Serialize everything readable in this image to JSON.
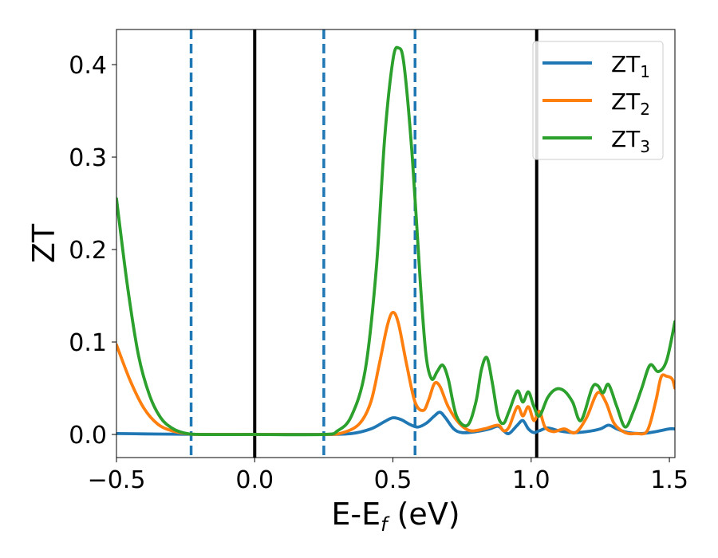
{
  "chart_data": {
    "type": "line",
    "xlabel": "E-E",
    "xlabel_sub": "f",
    "xlabel_unit": " (eV)",
    "ylabel": "ZT",
    "xlim": [
      -0.5,
      1.52
    ],
    "ylim": [
      -0.025,
      0.438
    ],
    "xticks": [
      -0.5,
      0.0,
      0.5,
      1.0,
      1.5
    ],
    "xtick_labels": [
      "−0.5",
      "0.0",
      "0.5",
      "1.0",
      "1.5"
    ],
    "yticks": [
      0.0,
      0.1,
      0.2,
      0.3,
      0.4
    ],
    "ytick_labels": [
      "0.0",
      "0.1",
      "0.2",
      "0.3",
      "0.4"
    ],
    "grid": false,
    "legend_position": "top-right",
    "vlines_solid": [
      0.0,
      1.02
    ],
    "vlines_dashed": [
      -0.23,
      0.25,
      0.58
    ],
    "vline_solid_color": "#000000",
    "vline_dashed_color": "#1f77b4",
    "series": [
      {
        "name": "ZT",
        "name_sub": "1",
        "color": "#1f77b4",
        "x": [
          -0.5,
          -0.4,
          -0.3,
          -0.2,
          0.0,
          0.25,
          0.35,
          0.42,
          0.47,
          0.5,
          0.53,
          0.56,
          0.59,
          0.62,
          0.65,
          0.67,
          0.69,
          0.72,
          0.75,
          0.8,
          0.85,
          0.88,
          0.9,
          0.92,
          0.95,
          0.97,
          0.99,
          1.01,
          1.03,
          1.06,
          1.1,
          1.15,
          1.2,
          1.25,
          1.28,
          1.31,
          1.35,
          1.4,
          1.45,
          1.5,
          1.52
        ],
        "y": [
          0.001,
          0.0006,
          0.0003,
          0.0001,
          0.0,
          0.0,
          0.001,
          0.006,
          0.014,
          0.018,
          0.016,
          0.011,
          0.008,
          0.012,
          0.02,
          0.024,
          0.018,
          0.006,
          0.002,
          0.003,
          0.006,
          0.009,
          0.004,
          0.001,
          0.01,
          0.015,
          0.006,
          0.002,
          0.004,
          0.007,
          0.004,
          0.002,
          0.003,
          0.006,
          0.01,
          0.006,
          0.002,
          0.001,
          0.003,
          0.006,
          0.006
        ]
      },
      {
        "name": "ZT",
        "name_sub": "2",
        "color": "#ff7f0e",
        "x": [
          -0.5,
          -0.45,
          -0.4,
          -0.35,
          -0.3,
          -0.25,
          -0.2,
          0.0,
          0.25,
          0.32,
          0.38,
          0.42,
          0.45,
          0.48,
          0.5,
          0.52,
          0.55,
          0.58,
          0.61,
          0.63,
          0.65,
          0.67,
          0.7,
          0.74,
          0.78,
          0.83,
          0.88,
          0.9,
          0.92,
          0.95,
          0.97,
          0.99,
          1.01,
          1.03,
          1.05,
          1.08,
          1.12,
          1.16,
          1.2,
          1.24,
          1.27,
          1.3,
          1.34,
          1.38,
          1.42,
          1.45,
          1.47,
          1.49,
          1.51,
          1.52
        ],
        "y": [
          0.097,
          0.058,
          0.028,
          0.011,
          0.004,
          0.001,
          0.0,
          0.0,
          0.0,
          0.002,
          0.012,
          0.035,
          0.075,
          0.118,
          0.132,
          0.12,
          0.075,
          0.035,
          0.026,
          0.038,
          0.055,
          0.052,
          0.03,
          0.012,
          0.004,
          0.006,
          0.01,
          0.004,
          0.008,
          0.03,
          0.02,
          0.03,
          0.015,
          0.025,
          0.008,
          0.003,
          0.006,
          0.002,
          0.018,
          0.045,
          0.035,
          0.012,
          0.002,
          0.001,
          0.004,
          0.035,
          0.062,
          0.063,
          0.06,
          0.05
        ]
      },
      {
        "name": "ZT",
        "name_sub": "3",
        "color": "#2ca02c",
        "x": [
          -0.5,
          -0.46,
          -0.42,
          -0.38,
          -0.34,
          -0.3,
          -0.26,
          -0.2,
          0.0,
          0.25,
          0.3,
          0.35,
          0.4,
          0.44,
          0.47,
          0.5,
          0.52,
          0.54,
          0.57,
          0.6,
          0.62,
          0.64,
          0.66,
          0.68,
          0.7,
          0.73,
          0.77,
          0.8,
          0.82,
          0.84,
          0.86,
          0.88,
          0.9,
          0.92,
          0.95,
          0.97,
          0.99,
          1.01,
          1.03,
          1.06,
          1.09,
          1.12,
          1.15,
          1.18,
          1.22,
          1.24,
          1.26,
          1.28,
          1.31,
          1.34,
          1.37,
          1.4,
          1.43,
          1.46,
          1.49,
          1.52
        ],
        "y": [
          0.255,
          0.16,
          0.085,
          0.042,
          0.018,
          0.007,
          0.002,
          0.0,
          0.0,
          0.0,
          0.004,
          0.02,
          0.07,
          0.18,
          0.32,
          0.405,
          0.418,
          0.4,
          0.3,
          0.16,
          0.085,
          0.06,
          0.068,
          0.075,
          0.06,
          0.02,
          0.01,
          0.035,
          0.07,
          0.083,
          0.055,
          0.02,
          0.012,
          0.025,
          0.047,
          0.035,
          0.046,
          0.03,
          0.02,
          0.04,
          0.049,
          0.047,
          0.035,
          0.015,
          0.05,
          0.053,
          0.045,
          0.054,
          0.03,
          0.008,
          0.025,
          0.05,
          0.075,
          0.068,
          0.08,
          0.122
        ]
      }
    ]
  }
}
